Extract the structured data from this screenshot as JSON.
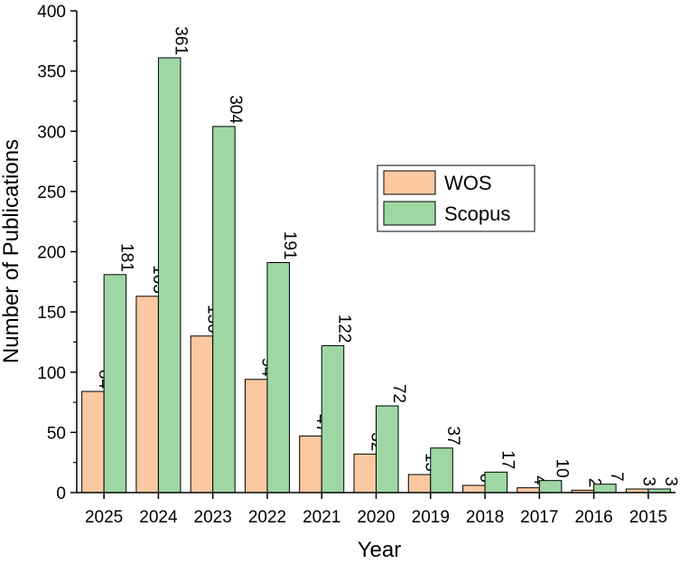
{
  "chart_data": {
    "type": "bar",
    "categories": [
      "2025",
      "2024",
      "2023",
      "2022",
      "2021",
      "2020",
      "2019",
      "2018",
      "2017",
      "2016",
      "2015"
    ],
    "series": [
      {
        "name": "WOS",
        "values": [
          84,
          163,
          130,
          94,
          47,
          32,
          15,
          6,
          4,
          2,
          3
        ],
        "color": "#fbc8a0"
      },
      {
        "name": "Scopus",
        "values": [
          181,
          361,
          304,
          191,
          122,
          72,
          37,
          17,
          10,
          7,
          3
        ],
        "color": "#9ed7a4"
      }
    ],
    "xlabel": "Year",
    "ylabel": "Number of Publications",
    "ylim": [
      0,
      400
    ],
    "yticks": [
      0,
      50,
      100,
      150,
      200,
      250,
      300,
      350,
      400
    ],
    "grid": false,
    "legend_position": "upper-right-center"
  }
}
